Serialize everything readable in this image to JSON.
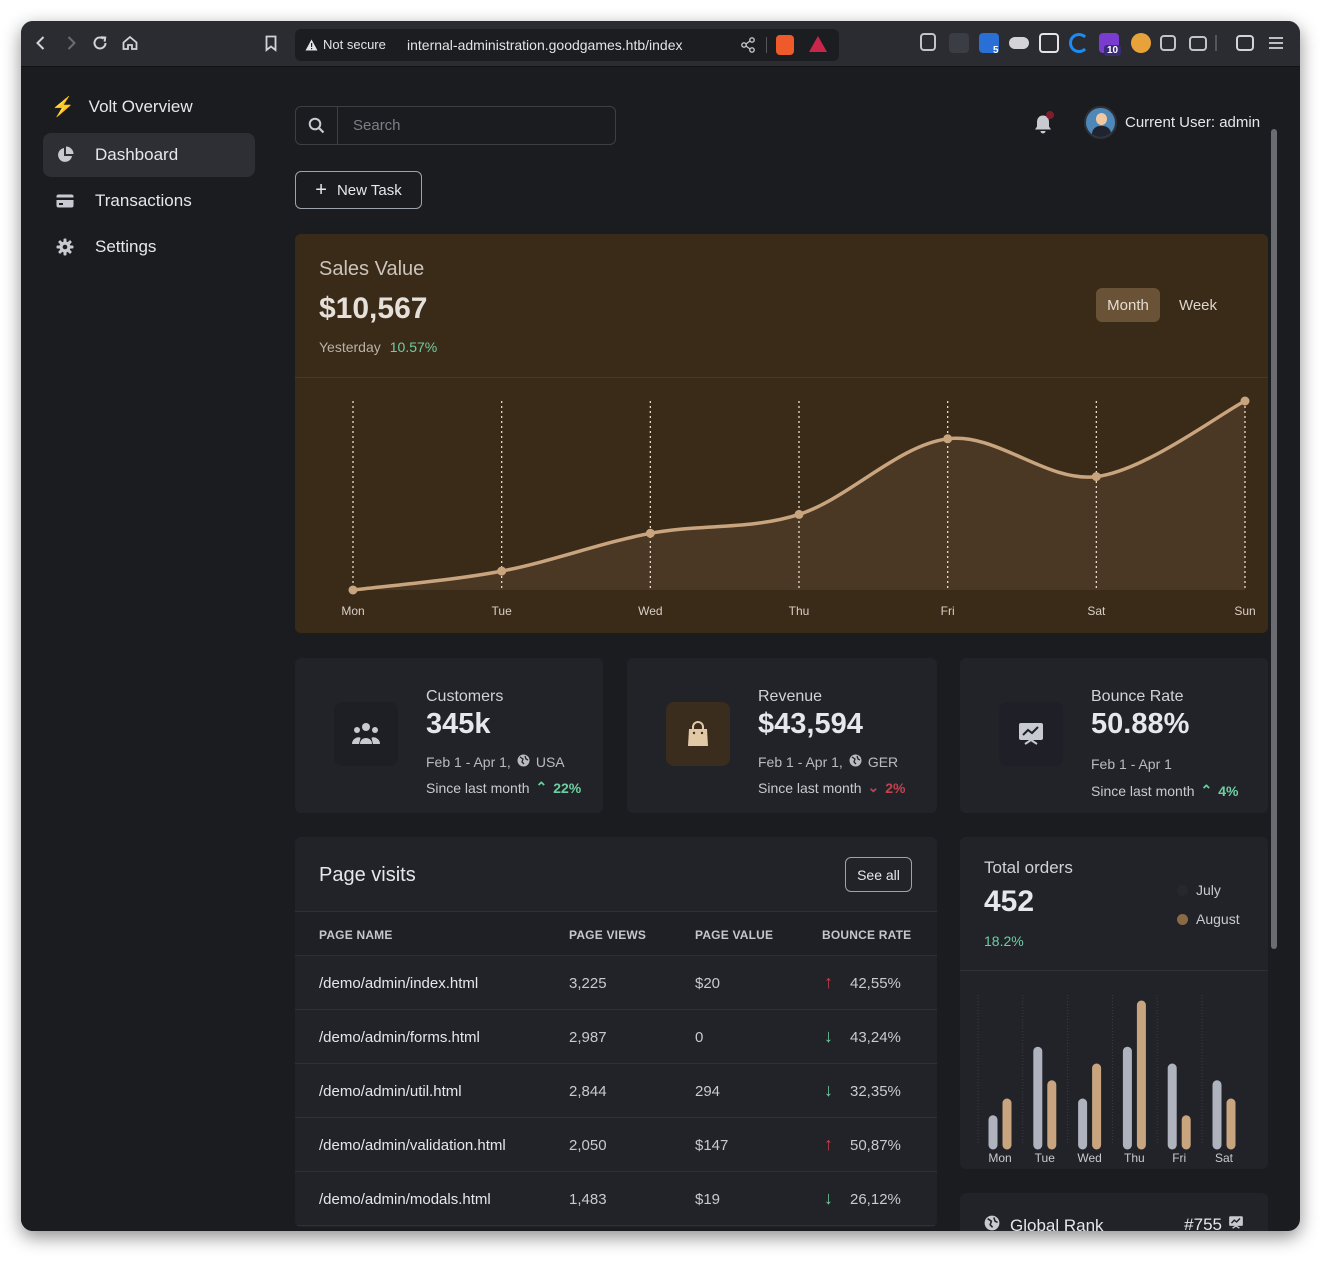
{
  "browser": {
    "security_label": "Not secure",
    "url": "internal-administration.goodgames.htb/index",
    "extension_badges": [
      "5",
      "10"
    ]
  },
  "sidebar": {
    "brand": "Volt Overview",
    "items": [
      {
        "label": "Dashboard",
        "icon": "pie-chart-icon",
        "active": true
      },
      {
        "label": "Transactions",
        "icon": "credit-card-icon",
        "active": false
      },
      {
        "label": "Settings",
        "icon": "gear-icon",
        "active": false
      }
    ]
  },
  "header": {
    "search_placeholder": "Search",
    "user_label": "Current User: admin",
    "new_task_label": "New Task"
  },
  "sales": {
    "label": "Sales Value",
    "value": "$10,567",
    "period_label": "Yesterday",
    "change": "10.57%",
    "toggle_month": "Month",
    "toggle_week": "Week"
  },
  "chart_data": {
    "type": "area",
    "categories": [
      "Mon",
      "Tue",
      "Wed",
      "Thu",
      "Fri",
      "Sat",
      "Sun"
    ],
    "values": [
      0,
      10,
      30,
      40,
      80,
      60,
      100
    ],
    "ylim": [
      0,
      100
    ],
    "grid": true,
    "color": "#c9a57f"
  },
  "stats": [
    {
      "title": "Customers",
      "value": "345k",
      "range": "Feb 1 - Apr 1,",
      "region": "USA",
      "since": "Since last month",
      "change": "22%",
      "direction": "up",
      "icon": "users-icon"
    },
    {
      "title": "Revenue",
      "value": "$43,594",
      "range": "Feb 1 - Apr 1,",
      "region": "GER",
      "since": "Since last month",
      "change": "2%",
      "direction": "down",
      "icon": "shopping-bag-icon"
    },
    {
      "title": "Bounce Rate",
      "value": "50.88%",
      "range": "Feb 1 - Apr 1",
      "region": "",
      "since": "Since last month",
      "change": "4%",
      "direction": "up",
      "icon": "presentation-chart-icon"
    }
  ],
  "page_visits": {
    "title": "Page visits",
    "see_all": "See all",
    "columns": [
      "PAGE NAME",
      "PAGE VIEWS",
      "PAGE VALUE",
      "BOUNCE RATE"
    ],
    "rows": [
      {
        "name": "/demo/admin/index.html",
        "views": "3,225",
        "value": "$20",
        "bounce": "42,55%",
        "trend": "up"
      },
      {
        "name": "/demo/admin/forms.html",
        "views": "2,987",
        "value": "0",
        "bounce": "43,24%",
        "trend": "down"
      },
      {
        "name": "/demo/admin/util.html",
        "views": "2,844",
        "value": "294",
        "bounce": "32,35%",
        "trend": "down"
      },
      {
        "name": "/demo/admin/validation.html",
        "views": "2,050",
        "value": "$147",
        "bounce": "50,87%",
        "trend": "up"
      },
      {
        "name": "/demo/admin/modals.html",
        "views": "1,483",
        "value": "$19",
        "bounce": "26,12%",
        "trend": "down"
      }
    ]
  },
  "orders": {
    "title": "Total orders",
    "value": "452",
    "change": "18.2%",
    "legend": [
      {
        "label": "July",
        "color": "#262830"
      },
      {
        "label": "August",
        "color": "#8a6a45"
      }
    ],
    "bar_chart": {
      "type": "bar",
      "categories": [
        "Mon",
        "Tue",
        "Wed",
        "Thu",
        "Fri",
        "Sat"
      ],
      "series": [
        {
          "name": "July",
          "values": [
            18,
            67,
            30,
            67,
            55,
            43
          ],
          "color": "#aeb3bd"
        },
        {
          "name": "August",
          "values": [
            30,
            43,
            55,
            100,
            18,
            30
          ],
          "color": "#c9a57f"
        }
      ],
      "ylim": [
        0,
        100
      ]
    }
  },
  "global_rank": {
    "label": "Global Rank",
    "value": "#755"
  }
}
